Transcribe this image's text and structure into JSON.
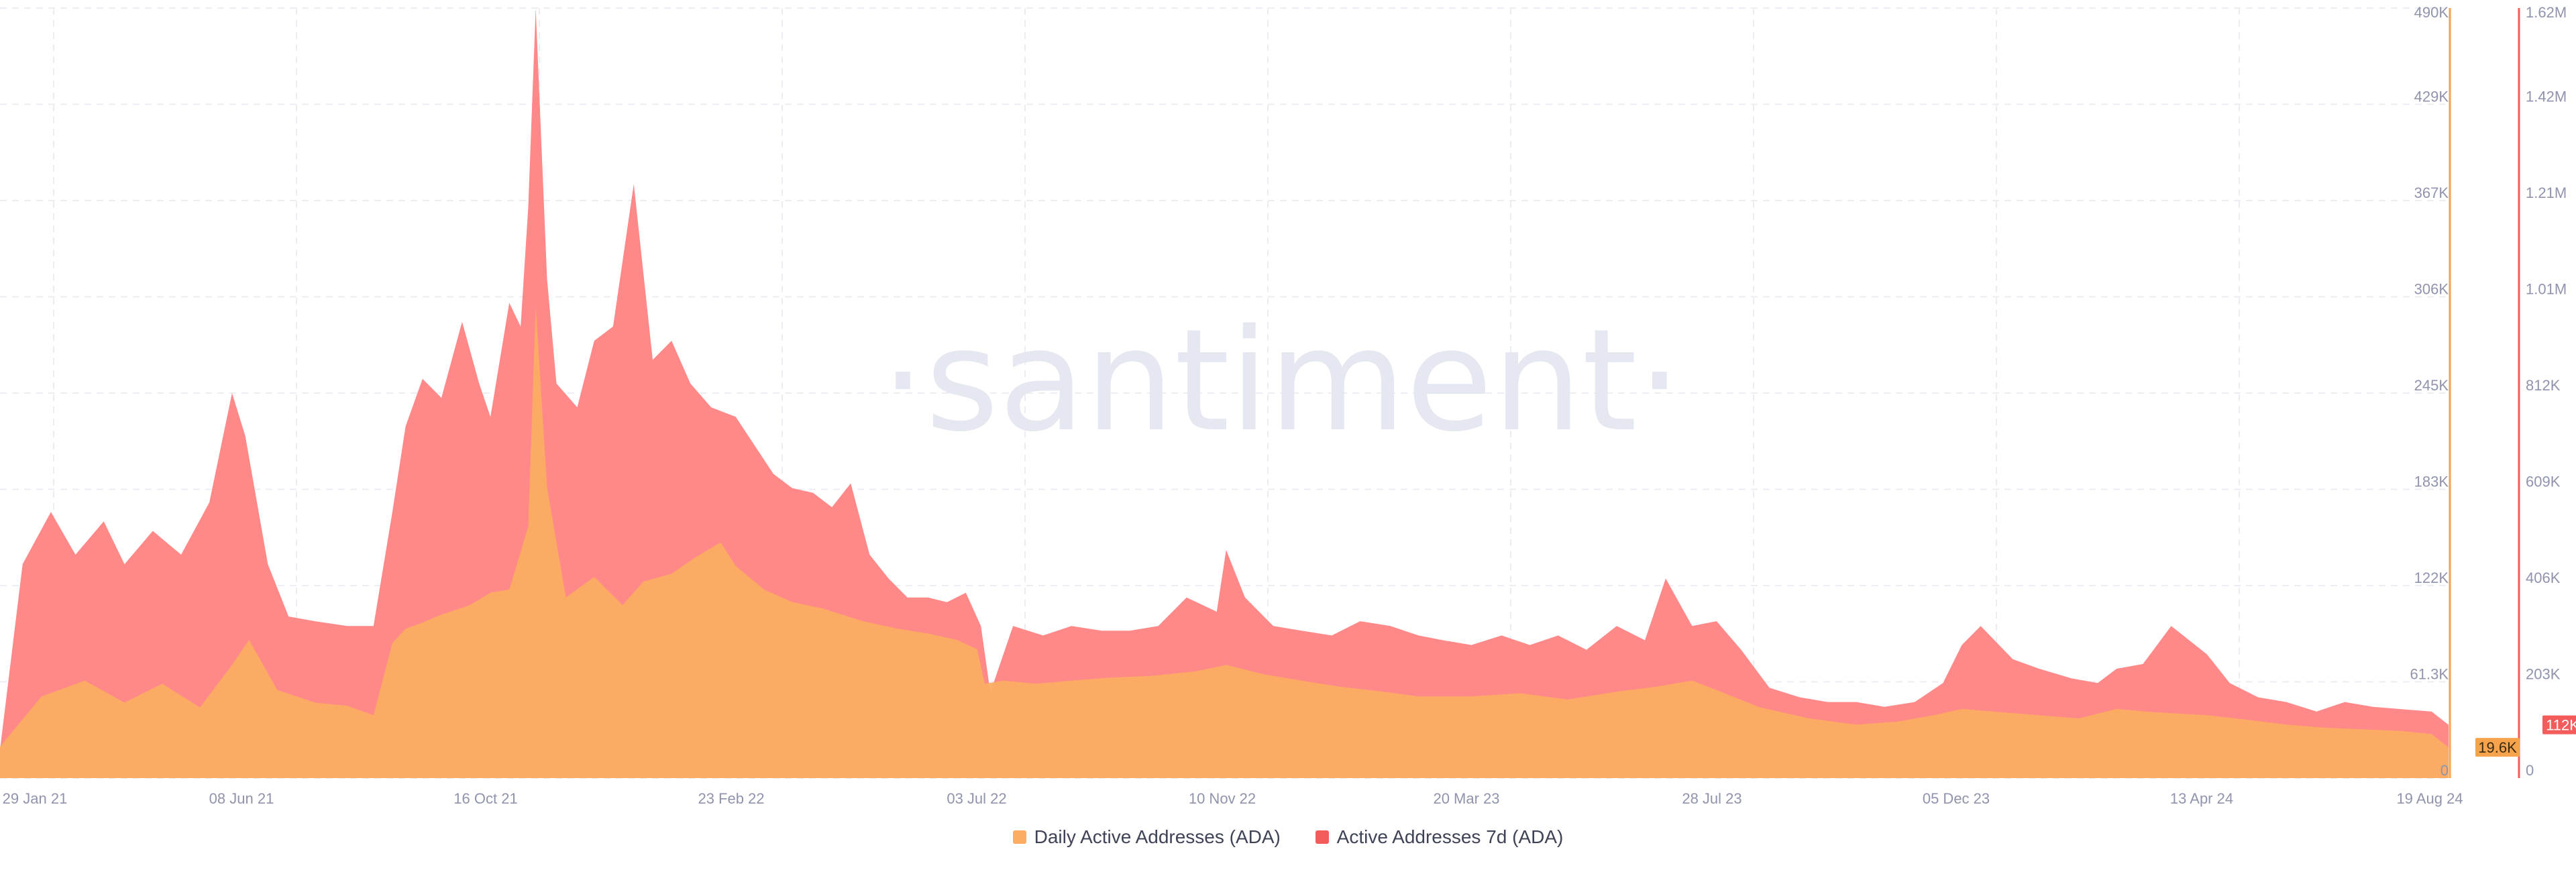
{
  "chart_data": {
    "type": "area",
    "watermark": "·santiment·",
    "x_ticks": [
      "29 Jan 21",
      "08 Jun 21",
      "16 Oct 21",
      "23 Feb 22",
      "03 Jul 22",
      "10 Nov 22",
      "20 Mar 23",
      "28 Jul 23",
      "05 Dec 23",
      "13 Apr 24",
      "19 Aug 24"
    ],
    "y_left_ticks": [
      "0",
      "61.3K",
      "122K",
      "183K",
      "245K",
      "306K",
      "367K",
      "429K",
      "490K"
    ],
    "y_right_ticks": [
      "0",
      "203K",
      "406K",
      "609K",
      "812K",
      "1.01M",
      "1.21M",
      "1.42M",
      "1.62M"
    ],
    "y_left_range": [
      0,
      490000
    ],
    "y_right_range": [
      0,
      1620000
    ],
    "x_range": [
      "2021-01-29",
      "2024-08-19"
    ],
    "grid": true,
    "legend_position": "bottom-center",
    "colors": {
      "daily": "#fcad62",
      "weekly": "#ff8282",
      "weekly_axis": "#f45b5b",
      "daily_axis": "#f7a24c"
    },
    "series": [
      {
        "name": "Daily Active Addresses (ADA)",
        "axis": "left",
        "last_value_label": "19.6K",
        "x": [
          "2021-01-29",
          "2021-02-20",
          "2021-03-15",
          "2021-04-05",
          "2021-04-25",
          "2021-05-15",
          "2021-06-01",
          "2021-06-10",
          "2021-06-25",
          "2021-07-15",
          "2021-08-01",
          "2021-08-15",
          "2021-08-25",
          "2021-09-01",
          "2021-09-10",
          "2021-09-20",
          "2021-10-05",
          "2021-10-16",
          "2021-10-26",
          "2021-11-05",
          "2021-11-09",
          "2021-11-15",
          "2021-11-25",
          "2021-12-10",
          "2021-12-25",
          "2022-01-05",
          "2022-01-20",
          "2022-02-01",
          "2022-02-15",
          "2022-02-23",
          "2022-03-10",
          "2022-03-25",
          "2022-04-10",
          "2022-05-01",
          "2022-05-20",
          "2022-06-05",
          "2022-06-20",
          "2022-07-01",
          "2022-07-05",
          "2022-07-15",
          "2022-08-01",
          "2022-08-20",
          "2022-09-10",
          "2022-10-01",
          "2022-10-25",
          "2022-11-10",
          "2022-11-30",
          "2022-12-20",
          "2023-01-10",
          "2023-02-01",
          "2023-02-20",
          "2023-03-20",
          "2023-04-15",
          "2023-05-10",
          "2023-06-05",
          "2023-06-25",
          "2023-07-15",
          "2023-07-28",
          "2023-08-20",
          "2023-09-15",
          "2023-10-10",
          "2023-11-01",
          "2023-11-20",
          "2023-12-05",
          "2023-12-25",
          "2024-01-15",
          "2024-02-05",
          "2024-02-25",
          "2024-03-15",
          "2024-04-13",
          "2024-05-05",
          "2024-05-25",
          "2024-06-15",
          "2024-07-05",
          "2024-07-25",
          "2024-08-10",
          "2024-08-19"
        ],
        "values": [
          20000,
          52000,
          62000,
          48000,
          60000,
          45000,
          72000,
          88000,
          56000,
          48000,
          46000,
          40000,
          86000,
          95000,
          99000,
          104000,
          110000,
          118000,
          120000,
          160000,
          300000,
          185000,
          115000,
          128000,
          110000,
          125000,
          130000,
          140000,
          150000,
          135000,
          120000,
          112000,
          108000,
          100000,
          95000,
          92000,
          88000,
          82000,
          60000,
          62000,
          60000,
          62000,
          64000,
          65000,
          68000,
          72000,
          66000,
          62000,
          58000,
          55000,
          52000,
          52000,
          54000,
          50000,
          55000,
          58000,
          62000,
          56000,
          45000,
          38000,
          34000,
          36000,
          40000,
          44000,
          42000,
          40000,
          38000,
          44000,
          42000,
          40000,
          37000,
          34000,
          32000,
          31000,
          30000,
          28000,
          19600
        ]
      },
      {
        "name": "Active Addresses 7d (ADA)",
        "axis": "right",
        "last_value_label": "112K",
        "x": [
          "2021-01-29",
          "2021-02-10",
          "2021-02-25",
          "2021-03-10",
          "2021-03-25",
          "2021-04-05",
          "2021-04-20",
          "2021-05-05",
          "2021-05-20",
          "2021-06-01",
          "2021-06-08",
          "2021-06-20",
          "2021-07-01",
          "2021-07-15",
          "2021-08-01",
          "2021-08-15",
          "2021-08-25",
          "2021-09-01",
          "2021-09-10",
          "2021-09-20",
          "2021-10-01",
          "2021-10-10",
          "2021-10-16",
          "2021-10-26",
          "2021-11-01",
          "2021-11-05",
          "2021-11-09",
          "2021-11-15",
          "2021-11-20",
          "2021-12-01",
          "2021-12-10",
          "2021-12-20",
          "2021-12-31",
          "2022-01-10",
          "2022-01-20",
          "2022-01-30",
          "2022-02-10",
          "2022-02-23",
          "2022-03-05",
          "2022-03-15",
          "2022-03-25",
          "2022-04-05",
          "2022-04-15",
          "2022-04-25",
          "2022-05-05",
          "2022-05-15",
          "2022-05-25",
          "2022-06-05",
          "2022-06-15",
          "2022-06-25",
          "2022-07-03",
          "2022-07-08",
          "2022-07-20",
          "2022-08-05",
          "2022-08-20",
          "2022-09-05",
          "2022-09-20",
          "2022-10-05",
          "2022-10-20",
          "2022-11-05",
          "2022-11-10",
          "2022-11-20",
          "2022-12-05",
          "2022-12-20",
          "2023-01-05",
          "2023-01-20",
          "2023-02-05",
          "2023-02-20",
          "2023-03-05",
          "2023-03-20",
          "2023-04-05",
          "2023-04-20",
          "2023-05-05",
          "2023-05-20",
          "2023-06-05",
          "2023-06-20",
          "2023-07-01",
          "2023-07-15",
          "2023-07-28",
          "2023-08-10",
          "2023-08-25",
          "2023-09-10",
          "2023-09-25",
          "2023-10-10",
          "2023-10-25",
          "2023-11-10",
          "2023-11-25",
          "2023-12-05",
          "2023-12-15",
          "2024-01-01",
          "2024-01-15",
          "2024-02-01",
          "2024-02-15",
          "2024-02-25",
          "2024-03-10",
          "2024-03-25",
          "2024-04-13",
          "2024-04-25",
          "2024-05-10",
          "2024-05-25",
          "2024-06-10",
          "2024-06-25",
          "2024-07-10",
          "2024-07-25",
          "2024-08-10",
          "2024-08-19"
        ],
        "values": [
          60000,
          450000,
          560000,
          470000,
          540000,
          450000,
          520000,
          470000,
          580000,
          810000,
          720000,
          450000,
          340000,
          330000,
          320000,
          320000,
          560000,
          740000,
          840000,
          800000,
          960000,
          830000,
          760000,
          1000000,
          950000,
          1200000,
          1620000,
          1050000,
          830000,
          780000,
          920000,
          950000,
          1250000,
          880000,
          920000,
          830000,
          780000,
          760000,
          700000,
          640000,
          610000,
          600000,
          570000,
          620000,
          470000,
          420000,
          380000,
          380000,
          370000,
          390000,
          320000,
          180000,
          320000,
          300000,
          320000,
          310000,
          310000,
          320000,
          380000,
          350000,
          480000,
          380000,
          320000,
          310000,
          300000,
          330000,
          320000,
          300000,
          290000,
          280000,
          300000,
          280000,
          300000,
          270000,
          320000,
          290000,
          420000,
          320000,
          330000,
          270000,
          190000,
          170000,
          160000,
          160000,
          150000,
          160000,
          200000,
          280000,
          320000,
          250000,
          230000,
          210000,
          200000,
          230000,
          240000,
          320000,
          260000,
          200000,
          170000,
          160000,
          140000,
          160000,
          150000,
          145000,
          140000,
          112000
        ]
      }
    ]
  },
  "legend": {
    "items": [
      {
        "label": "Daily Active Addresses (ADA)",
        "color": "#fcad62"
      },
      {
        "label": "Active Addresses 7d (ADA)",
        "color": "#f45b5b"
      }
    ]
  }
}
